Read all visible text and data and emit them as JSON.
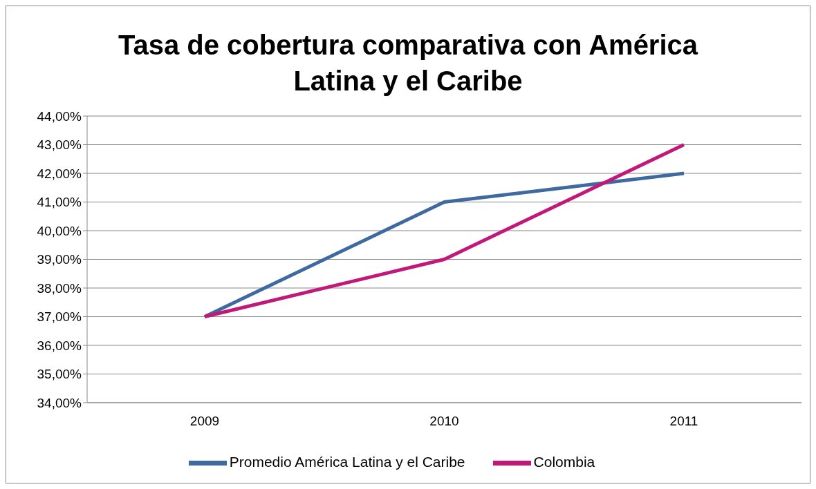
{
  "chart_data": {
    "type": "line",
    "title": "Tasa de cobertura comparativa con América Latina y el Caribe",
    "categories": [
      "2009",
      "2010",
      "2011"
    ],
    "series": [
      {
        "name": "Promedio América Latina y el Caribe",
        "color": "#3f6aa0",
        "values": [
          37,
          41,
          42
        ]
      },
      {
        "name": "Colombia",
        "color": "#c0197a",
        "values": [
          37,
          39,
          43
        ]
      }
    ],
    "ylim": [
      34,
      44
    ],
    "yticks": [
      {
        "value": 34,
        "label": "34,00%"
      },
      {
        "value": 35,
        "label": "35,00%"
      },
      {
        "value": 36,
        "label": "36,00%"
      },
      {
        "value": 37,
        "label": "37,00%"
      },
      {
        "value": 38,
        "label": "38,00%"
      },
      {
        "value": 39,
        "label": "39,00%"
      },
      {
        "value": 40,
        "label": "40,00%"
      },
      {
        "value": 41,
        "label": "41,00%"
      },
      {
        "value": 42,
        "label": "42,00%"
      },
      {
        "value": 43,
        "label": "43,00%"
      },
      {
        "value": 44,
        "label": "44,00%"
      }
    ],
    "grid": "y",
    "legend": "bottom",
    "marker": "none",
    "line_style": "solid"
  }
}
